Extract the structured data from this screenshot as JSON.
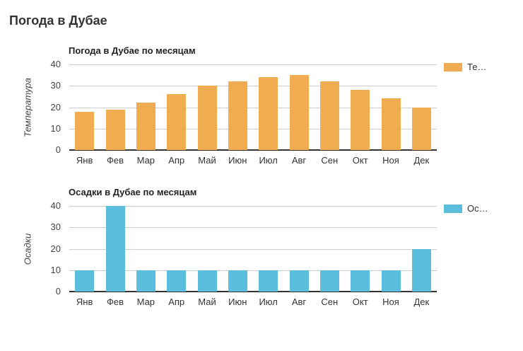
{
  "page": {
    "title": "Погода в Дубае",
    "background": "#FFFFFF"
  },
  "colors": {
    "temperature_bar": "#F0AC51",
    "precipitation_bar": "#5BBEDC",
    "gridline": "#CCCCCC",
    "axis_line": "#333333",
    "tick_label": "#444444",
    "month_label": "#333333",
    "chart_title": "#222222",
    "page_title": "#333333"
  },
  "chart_data": [
    {
      "type": "bar",
      "title": "Погода в Дубае по месяцам",
      "xlabel": "",
      "ylabel": "Температура",
      "legend_label": "Те…",
      "legend_position": "right",
      "color": "#F0AC51",
      "categories": [
        "Янв",
        "Фев",
        "Мар",
        "Апр",
        "Май",
        "Июн",
        "Июл",
        "Авг",
        "Сен",
        "Окт",
        "Ноя",
        "Дек"
      ],
      "values": [
        18,
        19,
        22,
        26,
        30,
        32,
        34,
        35,
        32,
        28,
        24,
        20
      ],
      "ylim": [
        0,
        40
      ],
      "yticks": [
        0,
        10,
        20,
        30,
        40
      ],
      "grid": true
    },
    {
      "type": "bar",
      "title": "Осадки в Дубае по месяцам",
      "xlabel": "",
      "ylabel": "Осадки",
      "legend_label": "Ос…",
      "legend_position": "right",
      "color": "#5BBEDC",
      "categories": [
        "Янв",
        "Фев",
        "Мар",
        "Апр",
        "Май",
        "Июн",
        "Июл",
        "Авг",
        "Сен",
        "Окт",
        "Ноя",
        "Дек"
      ],
      "values": [
        10,
        40,
        10,
        10,
        10,
        10,
        10,
        10,
        10,
        10,
        10,
        20
      ],
      "ylim": [
        0,
        40
      ],
      "yticks": [
        0,
        10,
        20,
        30,
        40
      ],
      "grid": true
    }
  ]
}
